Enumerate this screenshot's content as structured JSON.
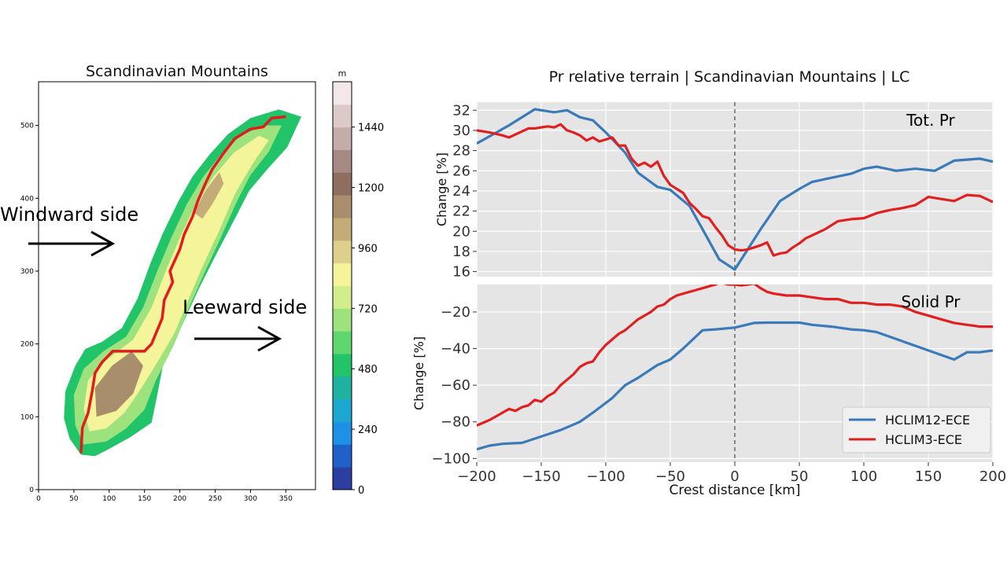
{
  "map_panel": {
    "title": "Scandinavian Mountains",
    "x_ticks": [
      "0",
      "50",
      "100",
      "150",
      "200",
      "250",
      "300",
      "350"
    ],
    "y_ticks": [
      "0",
      "100",
      "200",
      "300",
      "400",
      "500"
    ],
    "colorbar": {
      "unit": "m",
      "tick_labels": [
        "0",
        "240",
        "480",
        "720",
        "960",
        "1200",
        "1440"
      ],
      "colors": [
        "#2c3ea0",
        "#2060c8",
        "#1e90e6",
        "#1aa8d0",
        "#1fb2a0",
        "#22c46a",
        "#5fd66e",
        "#9ee27e",
        "#d2ee8c",
        "#f4f49a",
        "#dcd08c",
        "#c4ac78",
        "#a88e6c",
        "#8e6e5e",
        "#a48a82",
        "#c4aca8",
        "#dccaca",
        "#f2e8e8"
      ]
    },
    "annotations": {
      "windward": "Windward side",
      "leeward": "Leeward side"
    }
  },
  "chart_data": [
    {
      "type": "line",
      "title": "Pr relative terrain  |  Scandinavian Mountains | LC",
      "panel_label": "Tot. Pr",
      "xlabel": "",
      "ylabel": "Change [%]",
      "xlim": [
        -200,
        200
      ],
      "ylim": [
        15.5,
        32.8
      ],
      "y_ticks": [
        16,
        18,
        20,
        22,
        24,
        26,
        28,
        30,
        32
      ],
      "grid": true,
      "series": [
        {
          "name": "HCLIM12-ECE",
          "color": "#3a7ab8",
          "x": [
            -200,
            -175,
            -155,
            -140,
            -130,
            -120,
            -110,
            -100,
            -85,
            -75,
            -60,
            -50,
            -35,
            -25,
            -12,
            0,
            10,
            20,
            35,
            50,
            60,
            75,
            90,
            100,
            110,
            125,
            140,
            155,
            170,
            190,
            200
          ],
          "y": [
            28.7,
            30.5,
            32.1,
            31.8,
            32.0,
            31.3,
            31.0,
            29.8,
            27.8,
            25.8,
            24.4,
            24.1,
            22.5,
            20.2,
            17.2,
            16.2,
            18.2,
            20.2,
            23.0,
            24.2,
            24.9,
            25.3,
            25.7,
            26.2,
            26.4,
            26.0,
            26.2,
            26.0,
            27.0,
            27.2,
            26.9
          ]
        },
        {
          "name": "HCLIM3-ECE",
          "color": "#e02020",
          "x": [
            -200,
            -190,
            -180,
            -175,
            -170,
            -160,
            -155,
            -150,
            -145,
            -140,
            -135,
            -130,
            -125,
            -120,
            -115,
            -110,
            -105,
            -100,
            -95,
            -90,
            -85,
            -80,
            -75,
            -70,
            -65,
            -60,
            -55,
            -50,
            -45,
            -40,
            -35,
            -30,
            -25,
            -20,
            -15,
            -10,
            -5,
            0,
            5,
            10,
            15,
            20,
            25,
            30,
            35,
            40,
            45,
            50,
            55,
            60,
            70,
            80,
            90,
            100,
            110,
            120,
            130,
            140,
            150,
            160,
            170,
            180,
            190,
            200
          ],
          "y": [
            30.0,
            29.8,
            29.5,
            29.3,
            29.6,
            30.2,
            30.2,
            30.3,
            30.4,
            30.3,
            30.6,
            30.0,
            29.8,
            29.5,
            29.0,
            29.3,
            28.9,
            29.1,
            29.3,
            28.5,
            28.5,
            27.2,
            26.5,
            26.8,
            26.4,
            26.9,
            25.5,
            24.6,
            24.2,
            23.8,
            22.8,
            22.2,
            21.5,
            21.3,
            20.4,
            19.6,
            18.6,
            18.2,
            18.1,
            18.2,
            18.4,
            18.6,
            18.9,
            17.6,
            17.8,
            17.9,
            18.4,
            18.8,
            19.3,
            19.6,
            20.2,
            21.0,
            21.2,
            21.3,
            21.8,
            22.1,
            22.3,
            22.6,
            23.4,
            23.2,
            23.0,
            23.6,
            23.5,
            22.9
          ]
        }
      ]
    },
    {
      "type": "line",
      "panel_label": "Solid Pr",
      "xlabel": "Crest distance [km]",
      "ylabel": "Change [%]",
      "xlim": [
        -200,
        200
      ],
      "ylim": [
        -102,
        -5
      ],
      "x_ticks": [
        -200,
        -150,
        -100,
        -50,
        0,
        50,
        100,
        150,
        200
      ],
      "y_ticks": [
        -100,
        -80,
        -60,
        -40,
        -20
      ],
      "grid": true,
      "legend_loc": "lower right",
      "series": [
        {
          "name": "HCLIM12-ECE",
          "color": "#3a7ab8",
          "x": [
            -200,
            -190,
            -180,
            -165,
            -150,
            -135,
            -120,
            -110,
            -95,
            -85,
            -75,
            -60,
            -50,
            -40,
            -25,
            -15,
            0,
            15,
            25,
            35,
            50,
            60,
            75,
            90,
            100,
            110,
            130,
            150,
            170,
            180,
            190,
            200
          ],
          "y": [
            -95,
            -93,
            -92,
            -91.5,
            -88,
            -84.5,
            -80,
            -75,
            -67,
            -60,
            -56,
            -49,
            -46,
            -40,
            -30,
            -29.5,
            -28.5,
            -26,
            -25.8,
            -25.8,
            -25.8,
            -27,
            -28,
            -29.5,
            -30,
            -31,
            -36,
            -41,
            -46,
            -42,
            -42,
            -41
          ]
        },
        {
          "name": "HCLIM3-ECE",
          "color": "#e02020",
          "x": [
            -200,
            -190,
            -180,
            -175,
            -170,
            -165,
            -160,
            -155,
            -150,
            -145,
            -140,
            -135,
            -130,
            -125,
            -120,
            -115,
            -110,
            -105,
            -100,
            -95,
            -90,
            -85,
            -80,
            -75,
            -70,
            -65,
            -60,
            -55,
            -50,
            -45,
            -40,
            -35,
            -30,
            -25,
            -20,
            -15,
            -12,
            -8,
            -5,
            0,
            5,
            10,
            15,
            20,
            25,
            30,
            40,
            50,
            60,
            70,
            80,
            90,
            100,
            110,
            120,
            130,
            140,
            150,
            160,
            170,
            180,
            190,
            200
          ],
          "y": [
            -82,
            -79,
            -75,
            -73,
            -74,
            -72,
            -71,
            -68,
            -69,
            -66,
            -64,
            -60,
            -57,
            -54,
            -50,
            -48,
            -47,
            -42,
            -38,
            -35,
            -32,
            -30,
            -27,
            -24,
            -22,
            -20,
            -17,
            -16,
            -13,
            -11,
            -10,
            -9,
            -8,
            -7,
            -6,
            -5,
            -4,
            -4.5,
            -5,
            -5,
            -5.5,
            -5,
            -4.5,
            -7,
            -9,
            -10,
            -11,
            -11,
            -12,
            -13,
            -13,
            -15,
            -15,
            -16,
            -16,
            -17,
            -20,
            -22,
            -24,
            -26,
            -27,
            -28,
            -28
          ]
        }
      ]
    }
  ],
  "legend": {
    "entries": [
      "HCLIM12-ECE",
      "HCLIM3-ECE"
    ]
  }
}
